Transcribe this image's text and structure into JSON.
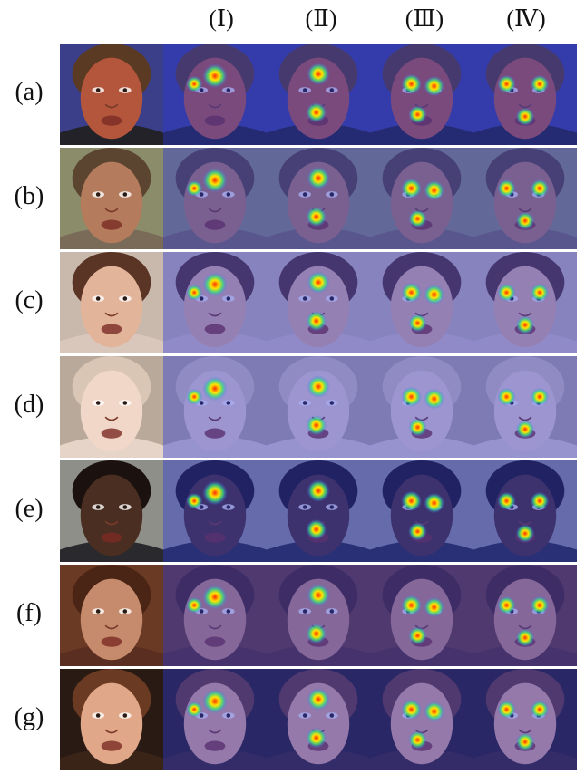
{
  "figure": {
    "column_headers": [
      "(Ⅰ)",
      "(Ⅱ)",
      "(Ⅲ)",
      "(Ⅳ)"
    ],
    "rows": [
      {
        "label": "(a)",
        "bg": "#3b3f8a",
        "skin": "#b3563c",
        "hair": "#5a3a22",
        "shirt": "#222228"
      },
      {
        "label": "(b)",
        "bg": "#8a8c6a",
        "skin": "#b47c5c",
        "hair": "#5b4530",
        "shirt": "#7a6b58"
      },
      {
        "label": "(c)",
        "bg": "#c9b9ad",
        "skin": "#e2b49a",
        "hair": "#5a3424",
        "shirt": "#d9c7bc"
      },
      {
        "label": "(d)",
        "bg": "#b9a99a",
        "skin": "#f0d7c8",
        "hair": "#d9c6b4",
        "shirt": "#e6d4c8"
      },
      {
        "label": "(e)",
        "bg": "#8f8f8a",
        "skin": "#4a2e22",
        "hair": "#1b1210",
        "shirt": "#2a2a2e"
      },
      {
        "label": "(f)",
        "bg": "#6a3a24",
        "skin": "#c68a6c",
        "hair": "#4a2414",
        "shirt": "#5a2e20"
      },
      {
        "label": "(g)",
        "bg": "#2a1a14",
        "skin": "#e0a888",
        "hair": "#6a3a22",
        "shirt": "#3a2418"
      }
    ]
  }
}
